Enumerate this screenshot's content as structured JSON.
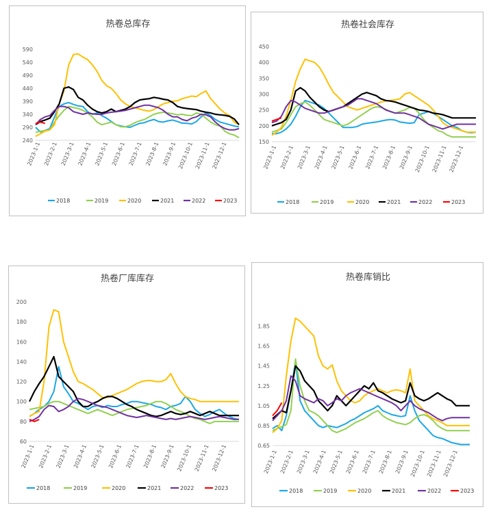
{
  "colors": {
    "2018": "#1aa7e6",
    "2019": "#92d050",
    "2020": "#ffc000",
    "2021": "#000000",
    "2022": "#7030a0",
    "2023": "#ff0000"
  },
  "chart_data": [
    {
      "type": "line",
      "title": "热卷总库存",
      "y_ticks": [
        "240",
        "290",
        "340",
        "390",
        "440",
        "490",
        "540",
        "590"
      ],
      "ylim": [
        240,
        590
      ],
      "x_ticks": [
        "2023-1-1",
        "2023-2-1",
        "2023-3-1",
        "2023-4-1",
        "2023-5-1",
        "2023-6-1",
        "2023-7-1",
        "2023-8-1",
        "2023-9-1",
        "2023-10-1",
        "2023-11-1",
        "2023-12-1"
      ],
      "legend": [
        "2018",
        "2019",
        "2020",
        "2021",
        "2022",
        "2023"
      ],
      "series": [
        {
          "name": "2018",
          "values": [
            290,
            272,
            278,
            285,
            330,
            370,
            380,
            385,
            378,
            372,
            370,
            350,
            340,
            345,
            335,
            325,
            312,
            300,
            295,
            292,
            290,
            298,
            305,
            308,
            315,
            320,
            312,
            310,
            315,
            318,
            312,
            306,
            305,
            303,
            312,
            330,
            345,
            335,
            320,
            310,
            305,
            300,
            295,
            292
          ]
        },
        {
          "name": "2019",
          "values": [
            270,
            275,
            277,
            280,
            310,
            335,
            355,
            370,
            366,
            362,
            355,
            345,
            330,
            310,
            300,
            305,
            310,
            300,
            292,
            292,
            298,
            308,
            315,
            320,
            330,
            340,
            345,
            348,
            345,
            342,
            338,
            340,
            336,
            335,
            345,
            340,
            325,
            310,
            300,
            295,
            275,
            265,
            260,
            250
          ]
        },
        {
          "name": "2020",
          "values": [
            255,
            265,
            275,
            280,
            300,
            380,
            430,
            530,
            570,
            572,
            560,
            550,
            530,
            505,
            470,
            450,
            440,
            420,
            395,
            380,
            370,
            365,
            360,
            355,
            352,
            358,
            370,
            380,
            385,
            390,
            392,
            400,
            405,
            410,
            408,
            420,
            430,
            400,
            380,
            360,
            345,
            335,
            310,
            300
          ]
        },
        {
          "name": "2021",
          "values": [
            300,
            312,
            318,
            325,
            350,
            380,
            440,
            445,
            435,
            405,
            395,
            375,
            360,
            350,
            345,
            350,
            360,
            350,
            355,
            360,
            370,
            385,
            395,
            398,
            400,
            405,
            402,
            398,
            395,
            385,
            370,
            365,
            362,
            360,
            358,
            352,
            348,
            345,
            340,
            338,
            336,
            332,
            322,
            300
          ]
        },
        {
          "name": "2022",
          "values": [
            300,
            320,
            330,
            335,
            355,
            370,
            370,
            365,
            350,
            345,
            340,
            345,
            342,
            340,
            340,
            345,
            348,
            350,
            352,
            355,
            360,
            365,
            370,
            375,
            375,
            370,
            365,
            355,
            340,
            330,
            330,
            320,
            315,
            325,
            330,
            340,
            338,
            330,
            310,
            295,
            285,
            280,
            280,
            285
          ]
        },
        {
          "name": "2023",
          "values": [
            305,
            310,
            305
          ]
        }
      ]
    },
    {
      "type": "line",
      "title": "热卷社会库存",
      "y_ticks": [
        "150",
        "200",
        "250",
        "300",
        "350",
        "400",
        "450"
      ],
      "ylim": [
        150,
        450
      ],
      "x_ticks": [
        "2023-1-1",
        "2023-2-1",
        "2023-3-1",
        "2023-4-1",
        "2023-5-1",
        "2023-6-1",
        "2023-7-1",
        "2023-8-1",
        "2023-9-1",
        "2023-10-1",
        "2023-11-1",
        "2023-12-1"
      ],
      "legend": [
        "2018",
        "2019",
        "2020",
        "2021",
        "2022",
        "2023"
      ],
      "series": [
        {
          "name": "2018",
          "values": [
            175,
            175,
            180,
            190,
            205,
            230,
            260,
            280,
            275,
            270,
            265,
            255,
            240,
            225,
            210,
            195,
            195,
            195,
            198,
            205,
            208,
            210,
            212,
            215,
            218,
            220,
            218,
            212,
            210,
            208,
            210,
            235,
            240,
            245,
            240,
            230,
            220,
            210,
            200,
            195,
            185,
            180,
            178,
            180
          ]
        },
        {
          "name": "2019",
          "values": [
            180,
            185,
            190,
            210,
            235,
            260,
            270,
            275,
            265,
            250,
            235,
            220,
            215,
            210,
            205,
            200,
            205,
            215,
            225,
            235,
            245,
            255,
            260,
            258,
            252,
            245,
            240,
            245,
            250,
            258,
            255,
            240,
            220,
            205,
            195,
            185,
            180,
            170,
            165,
            165,
            165,
            165,
            165,
            165
          ]
        },
        {
          "name": "2020",
          "values": [
            170,
            180,
            195,
            230,
            280,
            340,
            380,
            410,
            405,
            400,
            385,
            360,
            330,
            305,
            290,
            275,
            260,
            255,
            250,
            255,
            260,
            265,
            270,
            275,
            278,
            280,
            282,
            285,
            300,
            305,
            295,
            285,
            275,
            265,
            250,
            230,
            210,
            200,
            195,
            190,
            185,
            180,
            180,
            180
          ]
        },
        {
          "name": "2021",
          "values": [
            200,
            205,
            210,
            220,
            250,
            310,
            320,
            310,
            290,
            275,
            260,
            250,
            245,
            250,
            255,
            260,
            270,
            280,
            290,
            300,
            305,
            300,
            295,
            285,
            280,
            278,
            275,
            270,
            265,
            260,
            255,
            250,
            248,
            245,
            240,
            238,
            235,
            230,
            225,
            225,
            225,
            225,
            225,
            225
          ]
        },
        {
          "name": "2022",
          "values": [
            210,
            215,
            230,
            260,
            280,
            275,
            265,
            255,
            250,
            245,
            240,
            240,
            245,
            250,
            255,
            260,
            265,
            275,
            285,
            285,
            280,
            275,
            270,
            260,
            250,
            245,
            240,
            240,
            240,
            235,
            230,
            225,
            215,
            205,
            200,
            195,
            190,
            195,
            200,
            205,
            205,
            205,
            205,
            205
          ]
        },
        {
          "name": "2023",
          "values": [
            215,
            220,
            225
          ]
        }
      ]
    },
    {
      "type": "line",
      "title": "热卷厂库库存",
      "y_ticks": [
        "60",
        "80",
        "100",
        "120",
        "140",
        "160",
        "180",
        "200"
      ],
      "ylim": [
        60,
        200
      ],
      "x_ticks": [
        "2023-1-1",
        "2023-2-1",
        "2023-3-1",
        "2023-4-1",
        "2023-5-1",
        "2023-6-1",
        "2023-7-1",
        "2023-8-1",
        "2023-9-1",
        "2023-10-1",
        "2023-11-1",
        "2023-12-1"
      ],
      "legend": [
        "2018",
        "2019",
        "2020",
        "2021",
        "2022",
        "2023"
      ],
      "series": [
        {
          "name": "2018",
          "values": [
            85,
            88,
            92,
            95,
            100,
            110,
            135,
            115,
            108,
            100,
            98,
            95,
            92,
            95,
            96,
            94,
            96,
            95,
            95,
            97,
            98,
            100,
            100,
            99,
            98,
            97,
            95,
            94,
            92,
            95,
            96,
            98,
            105,
            100,
            92,
            88,
            85,
            87,
            90,
            92,
            88,
            85,
            83,
            82
          ]
        },
        {
          "name": "2019",
          "values": [
            92,
            93,
            94,
            95,
            98,
            100,
            100,
            98,
            96,
            94,
            92,
            90,
            88,
            90,
            92,
            90,
            88,
            86,
            88,
            90,
            92,
            93,
            94,
            95,
            96,
            98,
            100,
            100,
            98,
            95,
            92,
            90,
            88,
            85,
            83,
            82,
            80,
            78,
            80,
            80,
            80,
            80,
            80,
            80
          ]
        },
        {
          "name": "2020",
          "values": [
            85,
            88,
            90,
            120,
            175,
            192,
            190,
            160,
            145,
            130,
            120,
            118,
            115,
            112,
            108,
            104,
            104,
            106,
            108,
            110,
            112,
            115,
            118,
            120,
            121,
            121,
            120,
            120,
            122,
            128,
            118,
            110,
            105,
            103,
            102,
            100,
            100,
            100,
            100,
            100,
            100,
            100,
            100,
            100
          ]
        },
        {
          "name": "2021",
          "values": [
            100,
            110,
            118,
            125,
            135,
            145,
            125,
            120,
            115,
            110,
            100,
            95,
            95,
            98,
            100,
            103,
            105,
            105,
            103,
            100,
            97,
            95,
            92,
            90,
            88,
            86,
            85,
            86,
            88,
            90,
            88,
            87,
            88,
            90,
            88,
            86,
            88,
            90,
            88,
            86,
            86,
            86,
            86,
            86
          ]
        },
        {
          "name": "2022",
          "values": [
            80,
            82,
            85,
            92,
            96,
            95,
            90,
            92,
            95,
            100,
            103,
            102,
            100,
            98,
            96,
            95,
            94,
            92,
            90,
            88,
            86,
            85,
            84,
            85,
            86,
            85,
            84,
            83,
            82,
            83,
            82,
            83,
            84,
            85,
            84,
            83,
            82,
            83,
            84,
            85,
            84,
            83,
            82,
            82
          ]
        },
        {
          "name": "2023",
          "values": [
            82,
            80,
            82
          ]
        }
      ]
    },
    {
      "type": "line",
      "title": "热卷库销比",
      "y_ticks": [
        "0.65",
        "0.85",
        "1.05",
        "1.25",
        "1.45",
        "1.65",
        "1.85"
      ],
      "ylim": [
        0.65,
        1.95
      ],
      "x_ticks": [
        "2023-1-1",
        "2023-2-1",
        "2023-3-1",
        "2023-4-1",
        "2023-5-1",
        "2023-6-1",
        "2023-7-1",
        "2023-8-1",
        "2023-9-1",
        "2023-10-1",
        "2023-11-1",
        "2023-12-1"
      ],
      "legend": [
        "2018",
        "2019",
        "2020",
        "2021",
        "2022",
        "2023"
      ],
      "series": [
        {
          "name": "2018",
          "values": [
            0.82,
            0.85,
            0.8,
            0.95,
            1.2,
            1.5,
            1.1,
            1.0,
            0.95,
            0.9,
            0.85,
            0.83,
            0.85,
            0.84,
            0.83,
            0.85,
            0.87,
            0.9,
            0.92,
            0.95,
            0.98,
            1.0,
            1.02,
            1.05,
            1.0,
            0.98,
            0.96,
            0.95,
            0.94,
            0.95,
            1.15,
            1.0,
            0.9,
            0.85,
            0.8,
            0.75,
            0.73,
            0.72,
            0.7,
            0.68,
            0.67,
            0.66,
            0.66,
            0.66
          ]
        },
        {
          "name": "2019",
          "values": [
            0.8,
            0.82,
            0.84,
            0.86,
            1.0,
            1.52,
            1.25,
            1.1,
            1.0,
            0.98,
            0.95,
            0.9,
            0.85,
            0.8,
            0.78,
            0.8,
            0.82,
            0.85,
            0.88,
            0.9,
            0.92,
            0.95,
            0.98,
            1.0,
            0.95,
            0.92,
            0.9,
            0.88,
            0.87,
            0.86,
            0.88,
            0.92,
            0.95,
            0.96,
            0.94,
            0.9,
            0.85,
            0.82,
            0.8,
            0.8,
            0.8,
            0.8,
            0.8,
            0.8
          ]
        },
        {
          "name": "2020",
          "values": [
            0.78,
            0.82,
            0.9,
            1.35,
            1.7,
            1.93,
            1.9,
            1.85,
            1.8,
            1.75,
            1.55,
            1.45,
            1.42,
            1.46,
            1.3,
            1.2,
            1.15,
            1.1,
            1.08,
            1.1,
            1.15,
            1.18,
            1.2,
            1.22,
            1.2,
            1.18,
            1.2,
            1.21,
            1.2,
            1.18,
            1.42,
            1.1,
            1.05,
            1.0,
            0.95,
            0.92,
            0.9,
            0.88,
            0.85,
            0.85,
            0.85,
            0.85,
            0.85,
            0.85
          ]
        },
        {
          "name": "2021",
          "values": [
            0.92,
            0.96,
            1.0,
            0.98,
            1.2,
            1.45,
            1.4,
            1.3,
            1.25,
            1.2,
            1.1,
            1.05,
            1.0,
            1.05,
            1.15,
            1.1,
            1.05,
            1.1,
            1.15,
            1.2,
            1.25,
            1.22,
            1.28,
            1.2,
            1.18,
            1.15,
            1.12,
            1.1,
            1.08,
            1.1,
            1.28,
            1.15,
            1.12,
            1.1,
            1.12,
            1.15,
            1.18,
            1.15,
            1.12,
            1.1,
            1.05,
            1.05,
            1.05,
            1.05
          ]
        },
        {
          "name": "2022",
          "values": [
            0.9,
            0.95,
            1.0,
            1.1,
            1.35,
            1.3,
            1.15,
            1.12,
            1.1,
            1.08,
            1.12,
            1.1,
            1.05,
            1.08,
            1.12,
            1.1,
            1.15,
            1.18,
            1.2,
            1.22,
            1.2,
            1.18,
            1.16,
            1.14,
            1.12,
            1.1,
            1.08,
            1.05,
            1.0,
            1.05,
            1.1,
            1.05,
            1.02,
            1.0,
            0.98,
            0.95,
            0.92,
            0.9,
            0.92,
            0.93,
            0.93,
            0.93,
            0.93,
            0.93
          ]
        },
        {
          "name": "2023",
          "values": [
            0.95,
            1.0,
            1.08
          ]
        }
      ]
    }
  ]
}
